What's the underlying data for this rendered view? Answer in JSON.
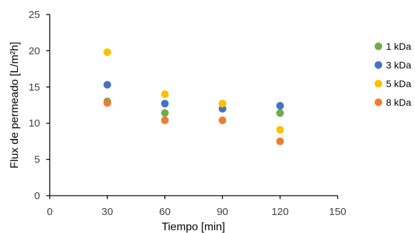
{
  "chart_data": {
    "type": "scatter",
    "xlabel": "Tiempo [min]",
    "ylabel": "Flux de permeado [L/m²h]",
    "xlim": [
      0,
      150
    ],
    "ylim": [
      0,
      25
    ],
    "xticks": [
      0,
      30,
      60,
      90,
      120,
      150
    ],
    "yticks": [
      0,
      5,
      10,
      15,
      20,
      25
    ],
    "grid": false,
    "legend_position": "right",
    "series": [
      {
        "name": "1 kDa",
        "color": "#70AD47",
        "x": [
          30,
          60,
          90,
          120
        ],
        "y": [
          13.0,
          11.4,
          12.7,
          11.4
        ]
      },
      {
        "name": "3 kDa",
        "color": "#4472C4",
        "x": [
          30,
          60,
          90,
          120
        ],
        "y": [
          15.3,
          12.7,
          12.0,
          12.4
        ]
      },
      {
        "name": "5 kDa",
        "color": "#FFC000",
        "x": [
          30,
          60,
          90,
          120
        ],
        "y": [
          19.8,
          14.0,
          12.7,
          9.1
        ]
      },
      {
        "name": "8 kDa",
        "color": "#ED7D31",
        "x": [
          30,
          60,
          90,
          120
        ],
        "y": [
          12.8,
          10.4,
          10.4,
          7.5
        ]
      }
    ]
  }
}
